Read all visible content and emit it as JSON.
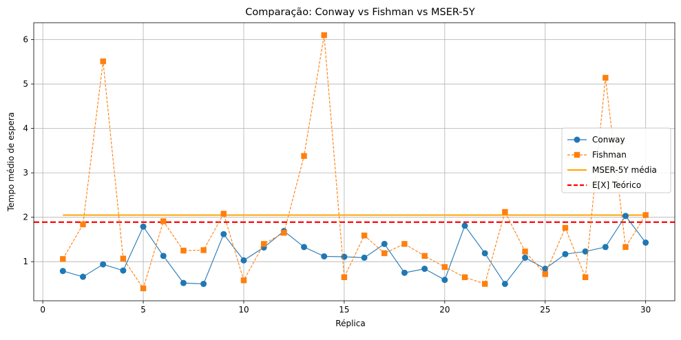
{
  "chart_data": {
    "type": "line",
    "title": "Comparação: Conway vs Fishman vs MSER-5Y",
    "xlabel": "Réplica",
    "ylabel": "Tempo médio de espera",
    "xlim": [
      -0.45,
      31.45
    ],
    "ylim": [
      0.12,
      6.38
    ],
    "x_ticks": [
      0,
      5,
      10,
      15,
      20,
      25,
      30
    ],
    "y_ticks": [
      1,
      2,
      3,
      4,
      5,
      6
    ],
    "grid": true,
    "legend_position": "center-right",
    "x": [
      1,
      2,
      3,
      4,
      5,
      6,
      7,
      8,
      9,
      10,
      11,
      12,
      13,
      14,
      15,
      16,
      17,
      18,
      19,
      20,
      21,
      22,
      23,
      24,
      25,
      26,
      27,
      28,
      29,
      30
    ],
    "series": [
      {
        "name": "Conway",
        "style": "solid-circle",
        "color": "#1f77b4",
        "values": [
          0.79,
          0.66,
          0.94,
          0.8,
          1.79,
          1.13,
          0.52,
          0.5,
          1.62,
          1.03,
          1.32,
          1.69,
          1.33,
          1.12,
          1.11,
          1.09,
          1.4,
          0.75,
          0.84,
          0.59,
          1.81,
          1.19,
          0.5,
          1.09,
          0.84,
          1.17,
          1.23,
          1.33,
          2.03,
          1.43
        ]
      },
      {
        "name": "Fishman",
        "style": "dashed-square",
        "color": "#ff7f0e",
        "values": [
          1.06,
          1.84,
          5.51,
          1.07,
          0.4,
          1.91,
          1.25,
          1.26,
          2.08,
          0.58,
          1.4,
          1.65,
          3.38,
          6.1,
          0.65,
          1.59,
          1.19,
          1.4,
          1.13,
          0.88,
          0.65,
          0.5,
          2.12,
          1.23,
          0.72,
          1.76,
          0.65,
          5.14,
          1.33,
          2.05
        ]
      },
      {
        "name": "MSER-5Y média",
        "style": "solid-line",
        "color": "#ffa500",
        "x_range": [
          1,
          30
        ],
        "value": 2.05
      },
      {
        "name": "E[X] Teórico",
        "style": "dashed-hline",
        "color": "#ff0000",
        "value": 1.89
      }
    ]
  }
}
